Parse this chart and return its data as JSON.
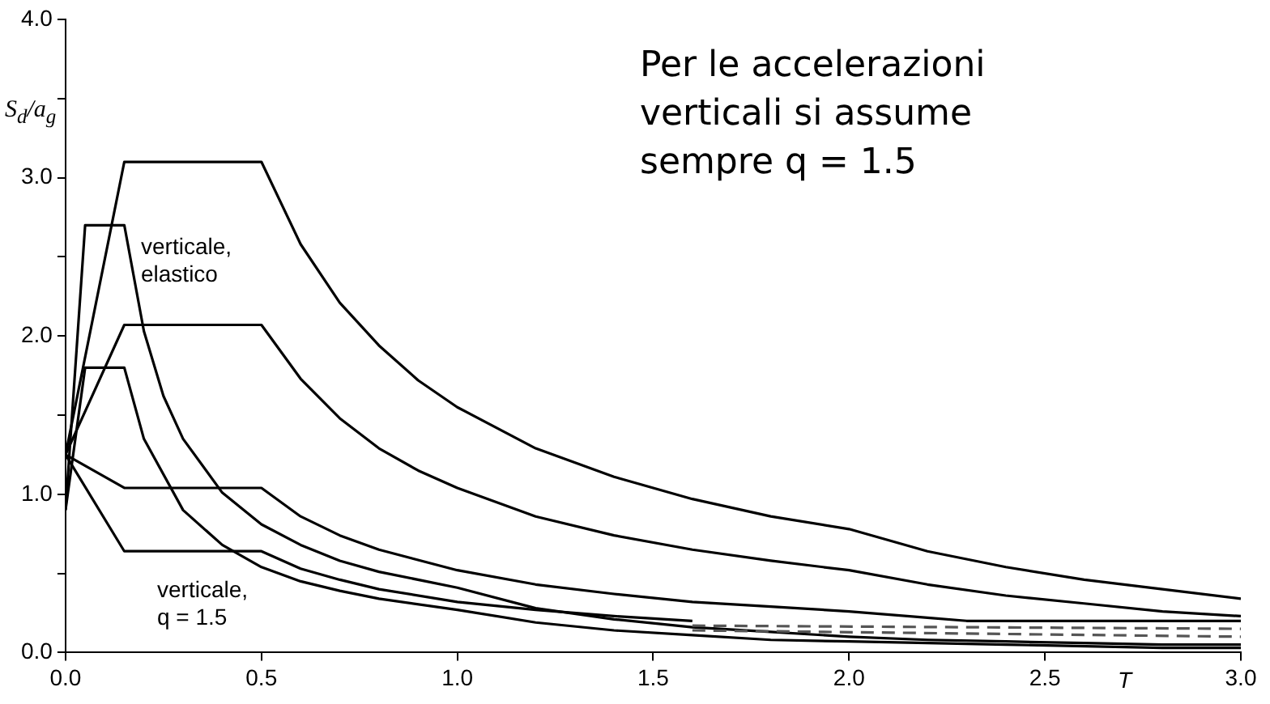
{
  "chart_data": {
    "type": "line",
    "ylabel": "S$_{d}$/a$_{g}$",
    "xlabel": "T",
    "xlim": [
      0,
      3
    ],
    "xticks": [
      {
        "value": 0,
        "label": "0.0"
      },
      {
        "value": 0.5,
        "label": "0.5"
      },
      {
        "value": 1,
        "label": "1.0"
      },
      {
        "value": 1.5,
        "label": "1.5"
      },
      {
        "value": 2,
        "label": "2.0"
      },
      {
        "value": 2.5,
        "label": "2.5"
      },
      {
        "value": 3,
        "label": "3.0"
      }
    ],
    "ylim": [
      0,
      4
    ],
    "yticks": [
      {
        "value": 0,
        "label": "0.0"
      },
      {
        "value": 0.5,
        "label": null
      },
      {
        "value": 1,
        "label": "1.0"
      },
      {
        "value": 1.5,
        "label": null
      },
      {
        "value": 2,
        "label": "2.0"
      },
      {
        "value": 2.5,
        "label": null
      },
      {
        "value": 3,
        "label": "3.0"
      },
      {
        "value": 3.5,
        "label": null
      },
      {
        "value": 4,
        "label": "4.0"
      }
    ],
    "grid": false,
    "legend": false,
    "marker": "none",
    "line_style": "solid",
    "series": [
      {
        "color": "#000000",
        "x": [
          0,
          0.15,
          0.5,
          0.6,
          0.7,
          0.8,
          0.9,
          1.0,
          1.2,
          1.4,
          1.6,
          1.8,
          2.0,
          2.2,
          2.4,
          2.6,
          2.8,
          3.0
        ],
        "values": [
          1.25,
          3.1,
          3.1,
          2.58,
          2.21,
          1.94,
          1.72,
          1.55,
          1.29,
          1.11,
          0.97,
          0.86,
          0.78,
          0.64,
          0.54,
          0.46,
          0.4,
          0.34
        ]
      },
      {
        "color": "#000000",
        "x": [
          0,
          0.15,
          0.5,
          0.6,
          0.7,
          0.8,
          0.9,
          1.0,
          1.2,
          1.4,
          1.6,
          1.8,
          2.0,
          2.2,
          2.4,
          2.6,
          2.8,
          3.0
        ],
        "values": [
          1.25,
          2.07,
          2.07,
          1.73,
          1.48,
          1.29,
          1.15,
          1.04,
          0.86,
          0.74,
          0.65,
          0.58,
          0.52,
          0.43,
          0.36,
          0.31,
          0.26,
          0.23
        ]
      },
      {
        "color": "#000000",
        "x": [
          0,
          0.15,
          0.5,
          0.6,
          0.7,
          0.8,
          1.0,
          1.2,
          1.4,
          1.6,
          1.8,
          2.0,
          2.2,
          2.3,
          2.5,
          3.0
        ],
        "values": [
          1.25,
          1.04,
          1.04,
          0.86,
          0.74,
          0.65,
          0.52,
          0.43,
          0.37,
          0.32,
          0.29,
          0.26,
          0.22,
          0.2,
          0.2,
          0.2
        ]
      },
      {
        "color": "#000000",
        "x": [
          0,
          0.15,
          0.5,
          0.6,
          0.7,
          0.8,
          1.0,
          1.2,
          1.4,
          1.6
        ],
        "values": [
          1.25,
          0.64,
          0.64,
          0.53,
          0.46,
          0.4,
          0.32,
          0.27,
          0.23,
          0.2
        ]
      },
      {
        "color": "#555555",
        "line_style": "dashed",
        "x": [
          1.6,
          3.0
        ],
        "values": [
          0.17,
          0.15
        ]
      },
      {
        "color": "#555555",
        "line_style": "dashed",
        "x": [
          1.6,
          3.0
        ],
        "values": [
          0.14,
          0.1
        ]
      },
      {
        "color": "#000000",
        "x": [
          0,
          0.05,
          0.15,
          0.2,
          0.25,
          0.3,
          0.4,
          0.5,
          0.6,
          0.7,
          0.8,
          1.0,
          1.2,
          1.4,
          1.6,
          1.8,
          2.0,
          2.2,
          2.4,
          2.6,
          2.8,
          3.0
        ],
        "values": [
          0.9,
          2.7,
          2.7,
          2.03,
          1.62,
          1.35,
          1.01,
          0.81,
          0.68,
          0.58,
          0.51,
          0.41,
          0.28,
          0.21,
          0.16,
          0.13,
          0.1,
          0.08,
          0.07,
          0.06,
          0.05,
          0.05
        ]
      },
      {
        "color": "#000000",
        "x": [
          0,
          0.05,
          0.15,
          0.2,
          0.3,
          0.4,
          0.5,
          0.6,
          0.7,
          0.8,
          1.0,
          1.2,
          1.4,
          1.6,
          1.8,
          2.0,
          2.4,
          2.8,
          3.0
        ],
        "values": [
          0.9,
          1.8,
          1.8,
          1.35,
          0.9,
          0.68,
          0.54,
          0.45,
          0.39,
          0.34,
          0.27,
          0.19,
          0.14,
          0.11,
          0.08,
          0.07,
          0.05,
          0.03,
          0.03
        ]
      }
    ],
    "annotations": [
      "verticale,\nelastico",
      "verticale,\nq = 1.5",
      "Per le accelerazioni\nverticali si assume\nsempre q = 1.5"
    ]
  }
}
